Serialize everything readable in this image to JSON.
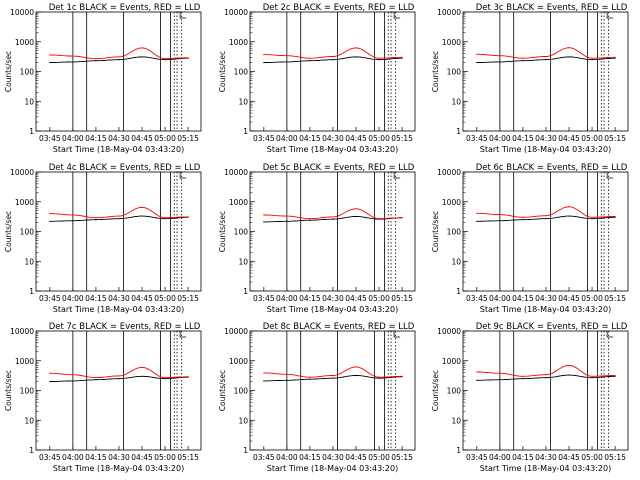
{
  "figure": {
    "xtick_labels": [
      "03:45",
      "04:00",
      "04:15",
      "04:30",
      "04:45",
      "05:00",
      "05:15"
    ],
    "ytick_labels": [
      "1",
      "10",
      "100",
      "1000",
      "10000"
    ],
    "ylabel": "Counts/sec",
    "xlabel": "Start Time (18-May-04 03:43:20)"
  },
  "chart_data": [
    {
      "type": "line",
      "title": "Det 1c BLACK = Events, RED = LLD",
      "xlabel": "Start Time (18-May-04 03:43:20)",
      "ylabel": "Counts/sec",
      "y_scale": "log",
      "ylim": [
        1,
        10000
      ],
      "x_ticks": [
        "03:45",
        "04:00",
        "04:15",
        "04:30",
        "04:45",
        "05:00",
        "05:15"
      ],
      "grid": false,
      "series": [
        {
          "color": "#000000",
          "x": [
            "03:45",
            "04:00",
            "04:15",
            "04:30",
            "04:45",
            "05:00",
            "05:15"
          ],
          "values": [
            200,
            210,
            230,
            250,
            310,
            250,
            280
          ]
        },
        {
          "color": "#ff0000",
          "x": [
            "03:45",
            "04:00",
            "04:15",
            "04:30",
            "04:45",
            "05:00",
            "05:15"
          ],
          "values": [
            360,
            330,
            270,
            310,
            620,
            270,
            290
          ]
        }
      ]
    },
    {
      "type": "line",
      "title": "Det 2c BLACK = Events, RED = LLD",
      "xlabel": "Start Time (18-May-04 03:43:20)",
      "ylabel": "Counts/sec",
      "y_scale": "log",
      "ylim": [
        1,
        10000
      ],
      "x_ticks": [
        "03:45",
        "04:00",
        "04:15",
        "04:30",
        "04:45",
        "05:00",
        "05:15"
      ],
      "grid": false,
      "series": [
        {
          "color": "#000000",
          "x": [
            "03:45",
            "04:00",
            "04:15",
            "04:30",
            "04:45",
            "05:00",
            "05:15"
          ],
          "values": [
            200,
            210,
            230,
            250,
            310,
            250,
            280
          ]
        },
        {
          "color": "#ff0000",
          "x": [
            "03:45",
            "04:00",
            "04:15",
            "04:30",
            "04:45",
            "05:00",
            "05:15"
          ],
          "values": [
            370,
            340,
            280,
            320,
            620,
            280,
            300
          ]
        }
      ]
    },
    {
      "type": "line",
      "title": "Det 3c BLACK = Events, RED = LLD",
      "xlabel": "Start Time (18-May-04 03:43:20)",
      "ylabel": "Counts/sec",
      "y_scale": "log",
      "ylim": [
        1,
        10000
      ],
      "x_ticks": [
        "03:45",
        "04:00",
        "04:15",
        "04:30",
        "04:45",
        "05:00",
        "05:15"
      ],
      "grid": false,
      "series": [
        {
          "color": "#000000",
          "x": [
            "03:45",
            "04:00",
            "04:15",
            "04:30",
            "04:45",
            "05:00",
            "05:15"
          ],
          "values": [
            200,
            210,
            230,
            250,
            310,
            250,
            280
          ]
        },
        {
          "color": "#ff0000",
          "x": [
            "03:45",
            "04:00",
            "04:15",
            "04:30",
            "04:45",
            "05:00",
            "05:15"
          ],
          "values": [
            380,
            340,
            280,
            320,
            630,
            280,
            300
          ]
        }
      ]
    },
    {
      "type": "line",
      "title": "Det 4c BLACK = Events, RED = LLD",
      "xlabel": "Start Time (18-May-04 03:43:20)",
      "ylabel": "Counts/sec",
      "y_scale": "log",
      "ylim": [
        1,
        10000
      ],
      "x_ticks": [
        "03:45",
        "04:00",
        "04:15",
        "04:30",
        "04:45",
        "05:00",
        "05:15"
      ],
      "grid": false,
      "series": [
        {
          "color": "#000000",
          "x": [
            "03:45",
            "04:00",
            "04:15",
            "04:30",
            "04:45",
            "05:00",
            "05:15"
          ],
          "values": [
            220,
            230,
            250,
            270,
            330,
            270,
            300
          ]
        },
        {
          "color": "#ff0000",
          "x": [
            "03:45",
            "04:00",
            "04:15",
            "04:30",
            "04:45",
            "05:00",
            "05:15"
          ],
          "values": [
            400,
            360,
            290,
            330,
            650,
            290,
            310
          ]
        }
      ]
    },
    {
      "type": "line",
      "title": "Det 5c BLACK = Events, RED = LLD",
      "xlabel": "Start Time (18-May-04 03:43:20)",
      "ylabel": "Counts/sec",
      "y_scale": "log",
      "ylim": [
        1,
        10000
      ],
      "x_ticks": [
        "03:45",
        "04:00",
        "04:15",
        "04:30",
        "04:45",
        "05:00",
        "05:15"
      ],
      "grid": false,
      "series": [
        {
          "color": "#000000",
          "x": [
            "03:45",
            "04:00",
            "04:15",
            "04:30",
            "04:45",
            "05:00",
            "05:15"
          ],
          "values": [
            210,
            220,
            240,
            260,
            320,
            260,
            290
          ]
        },
        {
          "color": "#ff0000",
          "x": [
            "03:45",
            "04:00",
            "04:15",
            "04:30",
            "04:45",
            "05:00",
            "05:15"
          ],
          "values": [
            360,
            330,
            270,
            310,
            580,
            270,
            290
          ]
        }
      ]
    },
    {
      "type": "line",
      "title": "Det 6c BLACK = Events, RED = LLD",
      "xlabel": "Start Time (18-May-04 03:43:20)",
      "ylabel": "Counts/sec",
      "y_scale": "log",
      "ylim": [
        1,
        10000
      ],
      "x_ticks": [
        "03:45",
        "04:00",
        "04:15",
        "04:30",
        "04:45",
        "05:00",
        "05:15"
      ],
      "grid": false,
      "series": [
        {
          "color": "#000000",
          "x": [
            "03:45",
            "04:00",
            "04:15",
            "04:30",
            "04:45",
            "05:00",
            "05:15"
          ],
          "values": [
            220,
            230,
            250,
            270,
            330,
            270,
            300
          ]
        },
        {
          "color": "#ff0000",
          "x": [
            "03:45",
            "04:00",
            "04:15",
            "04:30",
            "04:45",
            "05:00",
            "05:15"
          ],
          "values": [
            410,
            370,
            300,
            340,
            680,
            300,
            320
          ]
        }
      ]
    },
    {
      "type": "line",
      "title": "Det 7c BLACK = Events, RED = LLD",
      "xlabel": "Start Time (18-May-04 03:43:20)",
      "ylabel": "Counts/sec",
      "y_scale": "log",
      "ylim": [
        1,
        10000
      ],
      "x_ticks": [
        "03:45",
        "04:00",
        "04:15",
        "04:30",
        "04:45",
        "05:00",
        "05:15"
      ],
      "grid": false,
      "series": [
        {
          "color": "#000000",
          "x": [
            "03:45",
            "04:00",
            "04:15",
            "04:30",
            "04:45",
            "05:00",
            "05:15"
          ],
          "values": [
            200,
            210,
            230,
            250,
            300,
            250,
            280
          ]
        },
        {
          "color": "#ff0000",
          "x": [
            "03:45",
            "04:00",
            "04:15",
            "04:30",
            "04:45",
            "05:00",
            "05:15"
          ],
          "values": [
            380,
            340,
            270,
            310,
            600,
            270,
            290
          ]
        }
      ]
    },
    {
      "type": "line",
      "title": "Det 8c BLACK = Events, RED = LLD",
      "xlabel": "Start Time (18-May-04 03:43:20)",
      "ylabel": "Counts/sec",
      "y_scale": "log",
      "ylim": [
        1,
        10000
      ],
      "x_ticks": [
        "03:45",
        "04:00",
        "04:15",
        "04:30",
        "04:45",
        "05:00",
        "05:15"
      ],
      "grid": false,
      "series": [
        {
          "color": "#000000",
          "x": [
            "03:45",
            "04:00",
            "04:15",
            "04:30",
            "04:45",
            "05:00",
            "05:15"
          ],
          "values": [
            210,
            220,
            240,
            260,
            320,
            260,
            290
          ]
        },
        {
          "color": "#ff0000",
          "x": [
            "03:45",
            "04:00",
            "04:15",
            "04:30",
            "04:45",
            "05:00",
            "05:15"
          ],
          "values": [
            390,
            350,
            280,
            320,
            620,
            280,
            300
          ]
        }
      ]
    },
    {
      "type": "line",
      "title": "Det 9c BLACK = Events, RED = LLD",
      "xlabel": "Start Time (18-May-04 03:43:20)",
      "ylabel": "Counts/sec",
      "y_scale": "log",
      "ylim": [
        1,
        10000
      ],
      "x_ticks": [
        "03:45",
        "04:00",
        "04:15",
        "04:30",
        "04:45",
        "05:00",
        "05:15"
      ],
      "grid": false,
      "series": [
        {
          "color": "#000000",
          "x": [
            "03:45",
            "04:00",
            "04:15",
            "04:30",
            "04:45",
            "05:00",
            "05:15"
          ],
          "values": [
            220,
            230,
            250,
            270,
            330,
            270,
            300
          ]
        },
        {
          "color": "#ff0000",
          "x": [
            "03:45",
            "04:00",
            "04:15",
            "04:30",
            "04:45",
            "05:00",
            "05:15"
          ],
          "values": [
            420,
            380,
            300,
            340,
            700,
            300,
            320
          ]
        }
      ]
    }
  ]
}
